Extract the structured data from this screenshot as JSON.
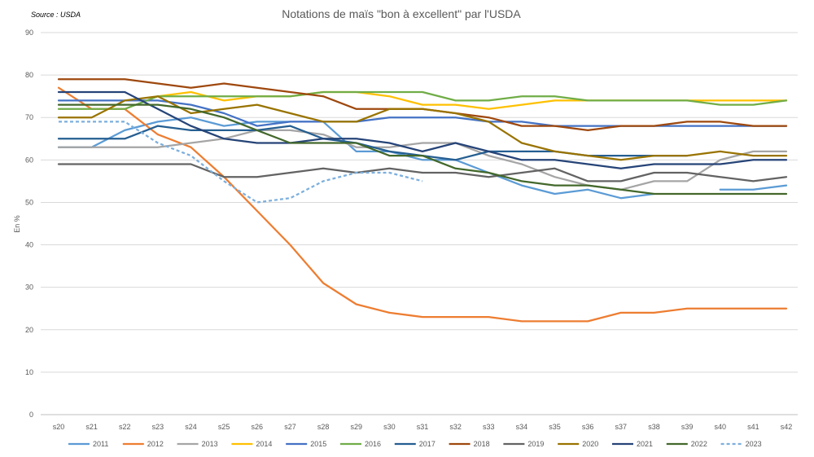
{
  "source": "Source : USDA",
  "chart_data": {
    "type": "line",
    "title": "Notations de maïs \"bon à excellent\" par l'USDA",
    "xlabel": "",
    "ylabel": "En %",
    "ylim": [
      0,
      90
    ],
    "yticks": [
      "0",
      "10",
      "20",
      "30",
      "40",
      "50",
      "60",
      "70",
      "80",
      "90"
    ],
    "grid": true,
    "legend_position": "bottom",
    "categories": [
      "s20",
      "s21",
      "s22",
      "s23",
      "s24",
      "s25",
      "s26",
      "s27",
      "s28",
      "s29",
      "s30",
      "s31",
      "s32",
      "s33",
      "s34",
      "s35",
      "s36",
      "s37",
      "s38",
      "s39",
      "s40",
      "s41",
      "s42"
    ],
    "series": [
      {
        "name": "2011",
        "color": "#5B9BD5",
        "dashed": false,
        "values": [
          63,
          63,
          67,
          69,
          70,
          68,
          69,
          69,
          69,
          62,
          62,
          60,
          60,
          57,
          54,
          52,
          53,
          51,
          52,
          null,
          53,
          53,
          54
        ]
      },
      {
        "name": "2012",
        "color": "#ED7D31",
        "dashed": false,
        "values": [
          77,
          72,
          72,
          66,
          63,
          56,
          48,
          40,
          31,
          26,
          24,
          23,
          23,
          23,
          22,
          22,
          22,
          24,
          24,
          25,
          25,
          25,
          25
        ]
      },
      {
        "name": "2013",
        "color": "#A5A5A5",
        "dashed": false,
        "values": [
          63,
          63,
          63,
          63,
          64,
          65,
          67,
          67,
          66,
          63,
          63,
          64,
          64,
          61,
          59,
          56,
          54,
          53,
          55,
          55,
          60,
          62,
          62
        ]
      },
      {
        "name": "2014",
        "color": "#FFC000",
        "dashed": false,
        "values": [
          null,
          null,
          null,
          75,
          76,
          74,
          75,
          75,
          76,
          76,
          75,
          73,
          73,
          72,
          73,
          74,
          74,
          74,
          74,
          74,
          74,
          74,
          74
        ]
      },
      {
        "name": "2015",
        "color": "#4472C4",
        "dashed": false,
        "values": [
          74,
          74,
          74,
          74,
          73,
          71,
          68,
          69,
          69,
          69,
          70,
          70,
          70,
          69,
          69,
          68,
          68,
          68,
          68,
          68,
          68,
          68,
          68
        ]
      },
      {
        "name": "2016",
        "color": "#70AD47",
        "dashed": false,
        "values": [
          72,
          72,
          72,
          75,
          75,
          75,
          75,
          75,
          76,
          76,
          76,
          76,
          74,
          74,
          75,
          75,
          74,
          74,
          74,
          74,
          73,
          73,
          74
        ]
      },
      {
        "name": "2017",
        "color": "#255E91",
        "dashed": false,
        "values": [
          65,
          65,
          65,
          68,
          67,
          67,
          67,
          68,
          65,
          64,
          62,
          61,
          60,
          62,
          62,
          62,
          61,
          61,
          61,
          61,
          null,
          null,
          null
        ]
      },
      {
        "name": "2018",
        "color": "#9E480E",
        "dashed": false,
        "values": [
          79,
          79,
          79,
          78,
          77,
          78,
          77,
          76,
          75,
          72,
          72,
          72,
          71,
          70,
          68,
          68,
          67,
          68,
          68,
          69,
          69,
          68,
          68
        ]
      },
      {
        "name": "2019",
        "color": "#636363",
        "dashed": false,
        "values": [
          59,
          59,
          59,
          59,
          59,
          56,
          56,
          57,
          58,
          57,
          58,
          57,
          57,
          56,
          57,
          58,
          55,
          55,
          57,
          57,
          56,
          55,
          56
        ]
      },
      {
        "name": "2020",
        "color": "#997300",
        "dashed": false,
        "values": [
          70,
          70,
          74,
          75,
          71,
          72,
          73,
          71,
          69,
          69,
          72,
          72,
          71,
          69,
          64,
          62,
          61,
          60,
          61,
          61,
          62,
          61,
          61
        ]
      },
      {
        "name": "2021",
        "color": "#264478",
        "dashed": false,
        "values": [
          76,
          76,
          76,
          72,
          68,
          65,
          64,
          64,
          65,
          65,
          64,
          62,
          64,
          62,
          60,
          60,
          59,
          58,
          59,
          59,
          59,
          60,
          60
        ]
      },
      {
        "name": "2022",
        "color": "#43682B",
        "dashed": false,
        "values": [
          73,
          73,
          73,
          73,
          72,
          70,
          67,
          64,
          64,
          64,
          61,
          61,
          58,
          57,
          55,
          54,
          54,
          53,
          52,
          52,
          52,
          52,
          52
        ]
      },
      {
        "name": "2023",
        "color": "#7CAFDD",
        "dashed": true,
        "values": [
          69,
          69,
          69,
          64,
          61,
          55,
          50,
          51,
          55,
          57,
          57,
          55,
          null,
          null,
          null,
          null,
          null,
          null,
          null,
          null,
          null,
          null,
          null
        ]
      }
    ]
  }
}
